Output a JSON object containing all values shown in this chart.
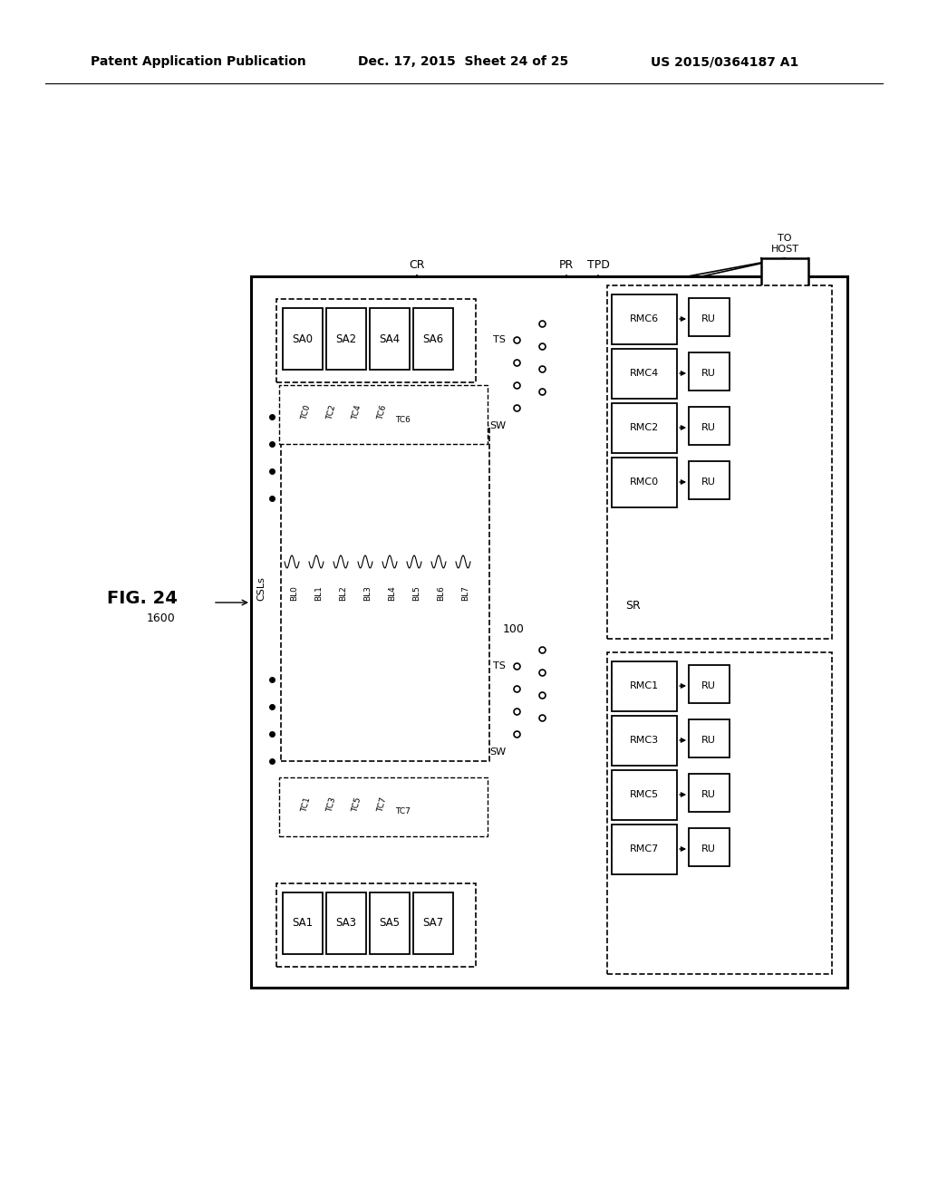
{
  "bg_color": "#ffffff",
  "header_left": "Patent Application Publication",
  "header_date": "Dec. 17, 2015  Sheet 24 of 25",
  "header_patent": "US 2015/0364187 A1",
  "fig_label": "FIG. 24",
  "circuit_label": "1600",
  "sa_top": [
    "SA0",
    "SA2",
    "SA4",
    "SA6"
  ],
  "sa_bot": [
    "SA1",
    "SA3",
    "SA5",
    "SA7"
  ],
  "rmc_top": [
    "RMC6",
    "RMC4",
    "RMC2",
    "RMC0"
  ],
  "rmc_bot": [
    "RMC1",
    "RMC3",
    "RMC5",
    "RMC7"
  ],
  "bl_labels": [
    "BL0",
    "BL1",
    "BL2",
    "BL3",
    "BL4",
    "BL5",
    "BL6",
    "BL7"
  ],
  "tc_top": [
    "TC0",
    "TC2",
    "TC4",
    "TC6"
  ],
  "tc_bot": [
    "TC1",
    "TC3",
    "TC5",
    "TC7"
  ],
  "inner_label": "100",
  "csl_label": "CSLs",
  "cr_label": "CR",
  "pr_label": "PR",
  "tpd_label": "TPD",
  "tohost_label": "TO\nHOST",
  "sw_label": "SW",
  "ts_label": "TS",
  "sr_label": "SR"
}
